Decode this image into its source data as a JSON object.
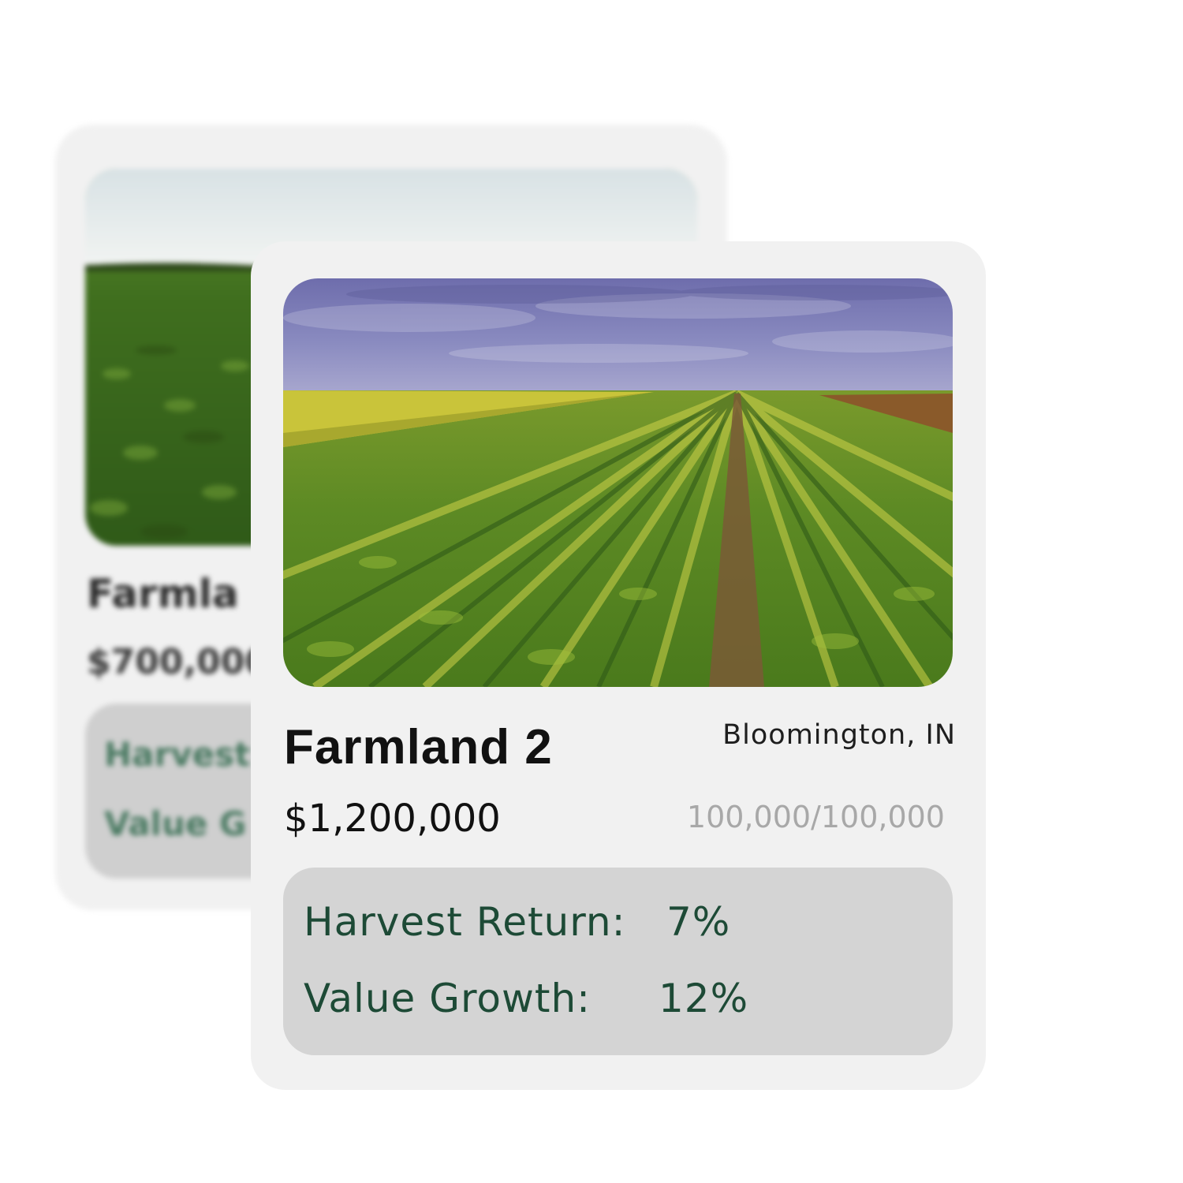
{
  "back_card": {
    "title": "Farmla",
    "price": "$700,000",
    "stats": {
      "harvest_label": "Harvest",
      "growth_label": "Value G"
    }
  },
  "front_card": {
    "title": "Farmland 2",
    "location": "Bloomington, IN",
    "price": "$1,200,000",
    "shares": "100,000/100,000",
    "stats": {
      "harvest_label": "Harvest Return:",
      "harvest_value": "7%",
      "growth_label": "Value Growth:",
      "growth_value": "12%"
    }
  },
  "colors": {
    "card_bg": "#f1f1f1",
    "stats_bg": "#d4d4d4",
    "stats_text": "#1d4a36",
    "muted_text": "#a8a8a8"
  }
}
